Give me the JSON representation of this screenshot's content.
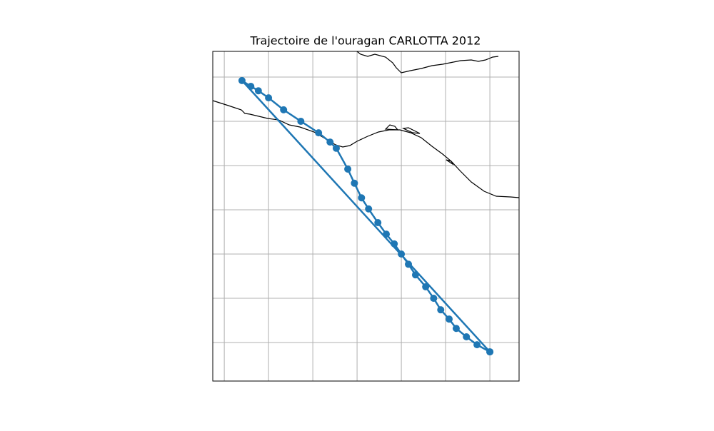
{
  "chart_data": {
    "type": "line",
    "title": "Trajectoire de l'ouragan CARLOTTA 2012",
    "xlim": [
      -98.26,
      -91.34
    ],
    "ylim": [
      11.13,
      18.58
    ],
    "xticks": [
      -98,
      -97,
      -96,
      -95,
      -94,
      -93,
      -92
    ],
    "yticks": [
      12,
      13,
      14,
      15,
      16,
      17,
      18
    ],
    "grid": true,
    "markers": true,
    "color": "#1f77b4",
    "x": [
      -92.0,
      -92.29,
      -92.53,
      -92.76,
      -92.92,
      -93.11,
      -93.27,
      -93.45,
      -93.68,
      -93.84,
      -94.0,
      -94.16,
      -94.34,
      -94.53,
      -94.74,
      -94.9,
      -95.06,
      -95.21,
      -95.47,
      -95.61,
      -95.87,
      -96.27,
      -96.66,
      -97.0,
      -97.23,
      -97.4,
      -97.6,
      -92.0
    ],
    "values": [
      11.79,
      11.95,
      12.13,
      12.32,
      12.53,
      12.74,
      13.0,
      13.26,
      13.53,
      13.77,
      14.0,
      14.23,
      14.45,
      14.71,
      15.02,
      15.27,
      15.6,
      15.92,
      16.39,
      16.53,
      16.74,
      17.0,
      17.26,
      17.53,
      17.69,
      17.79,
      17.92,
      11.79
    ]
  }
}
